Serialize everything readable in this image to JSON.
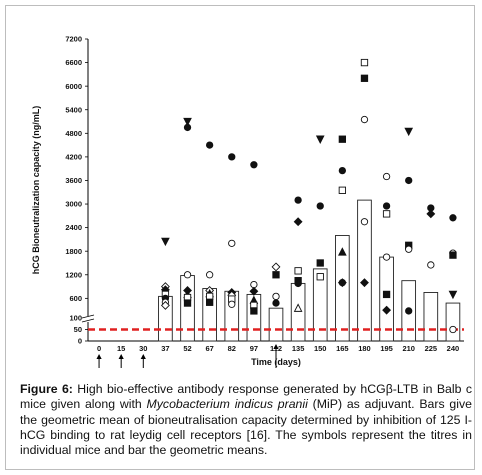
{
  "caption": {
    "label": "Figure 6:",
    "part1": " High bio-effective antibody response generated by hCGβ-LTB in Balb c mice given along with ",
    "italic": "Mycobacterium indicus pranii",
    "part2": " (MiP) as adjuvant. Bars give the geometric mean of bioneutralisation capacity determined by inhibition of 125 I-hCG binding to rat leydig cell receptors [16]. The symbols represent the titres in individual mice and bar the geometric means."
  },
  "chart_data": {
    "type": "bar",
    "xlabel": "Time (days)",
    "ylabel": "hCG Bioneutralization capacity  (ng/mL)",
    "x_ticks": [
      "0",
      "15",
      "30",
      "37",
      "52",
      "67",
      "82",
      "97",
      "112",
      "135",
      "150",
      "165",
      "180",
      "195",
      "210",
      "225",
      "240"
    ],
    "y_ticks_upper": [
      600,
      1200,
      1800,
      2400,
      3000,
      3600,
      4200,
      4800,
      5400,
      6000,
      6600,
      7200
    ],
    "y_ticks_lower": [
      0,
      50,
      100
    ],
    "ylim_upper": [
      100,
      7200
    ],
    "ylim_lower": [
      0,
      100
    ],
    "threshold": {
      "value": 50,
      "style": "dashed",
      "color": "#e02020"
    },
    "arrow_days": [
      "0",
      "15",
      "30",
      "112"
    ],
    "bars": [
      {
        "day": "37",
        "value": 650
      },
      {
        "day": "52",
        "value": 1180
      },
      {
        "day": "67",
        "value": 850
      },
      {
        "day": "82",
        "value": 780
      },
      {
        "day": "97",
        "value": 700
      },
      {
        "day": "112",
        "value": 350
      },
      {
        "day": "135",
        "value": 980
      },
      {
        "day": "150",
        "value": 1350
      },
      {
        "day": "165",
        "value": 2200
      },
      {
        "day": "180",
        "value": 3100
      },
      {
        "day": "195",
        "value": 1650
      },
      {
        "day": "210",
        "value": 1050
      },
      {
        "day": "225",
        "value": 750
      },
      {
        "day": "240",
        "value": 480
      }
    ],
    "marker_types": [
      "filled-circle",
      "open-circle",
      "filled-square",
      "open-square",
      "filled-triangle",
      "open-triangle",
      "filled-diamond",
      "open-diamond",
      "filled-tri-down"
    ],
    "points": [
      {
        "day": "37",
        "value": 2050,
        "marker": "filled-tri-down"
      },
      {
        "day": "37",
        "value": 900,
        "marker": "open-diamond"
      },
      {
        "day": "37",
        "value": 820,
        "marker": "filled-diamond"
      },
      {
        "day": "37",
        "value": 700,
        "marker": "open-square"
      },
      {
        "day": "37",
        "value": 600,
        "marker": "filled-circle"
      },
      {
        "day": "37",
        "value": 500,
        "marker": "open-circle"
      },
      {
        "day": "37",
        "value": 420,
        "marker": "open-diamond"
      },
      {
        "day": "52",
        "value": 5100,
        "marker": "filled-tri-down"
      },
      {
        "day": "52",
        "value": 4950,
        "marker": "filled-circle"
      },
      {
        "day": "52",
        "value": 1200,
        "marker": "open-circle"
      },
      {
        "day": "52",
        "value": 800,
        "marker": "filled-diamond"
      },
      {
        "day": "52",
        "value": 700,
        "marker": "filled-triangle"
      },
      {
        "day": "52",
        "value": 620,
        "marker": "open-square"
      },
      {
        "day": "52",
        "value": 480,
        "marker": "filled-square"
      },
      {
        "day": "67",
        "value": 4500,
        "marker": "filled-circle"
      },
      {
        "day": "67",
        "value": 1200,
        "marker": "open-circle"
      },
      {
        "day": "67",
        "value": 800,
        "marker": "open-diamond"
      },
      {
        "day": "67",
        "value": 720,
        "marker": "filled-triangle"
      },
      {
        "day": "67",
        "value": 650,
        "marker": "open-square"
      },
      {
        "day": "67",
        "value": 500,
        "marker": "filled-square"
      },
      {
        "day": "82",
        "value": 4200,
        "marker": "filled-circle"
      },
      {
        "day": "82",
        "value": 2000,
        "marker": "open-circle"
      },
      {
        "day": "82",
        "value": 750,
        "marker": "filled-diamond"
      },
      {
        "day": "82",
        "value": 680,
        "marker": "open-diamond"
      },
      {
        "day": "82",
        "value": 580,
        "marker": "open-square"
      },
      {
        "day": "82",
        "value": 450,
        "marker": "open-circle"
      },
      {
        "day": "97",
        "value": 4000,
        "marker": "filled-circle"
      },
      {
        "day": "97",
        "value": 950,
        "marker": "open-circle"
      },
      {
        "day": "97",
        "value": 780,
        "marker": "filled-diamond"
      },
      {
        "day": "97",
        "value": 550,
        "marker": "filled-triangle"
      },
      {
        "day": "97",
        "value": 420,
        "marker": "open-square"
      },
      {
        "day": "97",
        "value": 280,
        "marker": "filled-square"
      },
      {
        "day": "112",
        "value": 1400,
        "marker": "open-diamond"
      },
      {
        "day": "112",
        "value": 1200,
        "marker": "filled-square"
      },
      {
        "day": "112",
        "value": 650,
        "marker": "open-circle"
      },
      {
        "day": "112",
        "value": 480,
        "marker": "filled-circle"
      },
      {
        "day": "135",
        "value": 3100,
        "marker": "filled-circle"
      },
      {
        "day": "135",
        "value": 2550,
        "marker": "filled-diamond"
      },
      {
        "day": "135",
        "value": 1300,
        "marker": "open-square"
      },
      {
        "day": "135",
        "value": 1050,
        "marker": "filled-square"
      },
      {
        "day": "135",
        "value": 980,
        "marker": "filled-circle"
      },
      {
        "day": "135",
        "value": 350,
        "marker": "open-triangle"
      },
      {
        "day": "150",
        "value": 4650,
        "marker": "filled-tri-down"
      },
      {
        "day": "150",
        "value": 2950,
        "marker": "filled-circle"
      },
      {
        "day": "150",
        "value": 1500,
        "marker": "filled-square"
      },
      {
        "day": "150",
        "value": 1150,
        "marker": "open-square"
      },
      {
        "day": "165",
        "value": 4650,
        "marker": "filled-square"
      },
      {
        "day": "165",
        "value": 3850,
        "marker": "filled-circle"
      },
      {
        "day": "165",
        "value": 3350,
        "marker": "open-square"
      },
      {
        "day": "165",
        "value": 1780,
        "marker": "filled-triangle"
      },
      {
        "day": "165",
        "value": 1000,
        "marker": "open-circle"
      },
      {
        "day": "165",
        "value": 1000,
        "marker": "filled-diamond"
      },
      {
        "day": "180",
        "value": 6600,
        "marker": "open-square"
      },
      {
        "day": "180",
        "value": 6200,
        "marker": "filled-square"
      },
      {
        "day": "180",
        "value": 5150,
        "marker": "open-circle"
      },
      {
        "day": "180",
        "value": 2550,
        "marker": "open-circle"
      },
      {
        "day": "180",
        "value": 1000,
        "marker": "filled-diamond"
      },
      {
        "day": "195",
        "value": 3700,
        "marker": "open-circle"
      },
      {
        "day": "195",
        "value": 2950,
        "marker": "filled-circle"
      },
      {
        "day": "195",
        "value": 2750,
        "marker": "open-square"
      },
      {
        "day": "195",
        "value": 1650,
        "marker": "open-circle"
      },
      {
        "day": "195",
        "value": 700,
        "marker": "filled-square"
      },
      {
        "day": "195",
        "value": 300,
        "marker": "filled-diamond"
      },
      {
        "day": "210",
        "value": 4850,
        "marker": "filled-tri-down"
      },
      {
        "day": "210",
        "value": 3600,
        "marker": "filled-circle"
      },
      {
        "day": "210",
        "value": 1950,
        "marker": "filled-square"
      },
      {
        "day": "210",
        "value": 1850,
        "marker": "open-circle"
      },
      {
        "day": "210",
        "value": 280,
        "marker": "filled-circle"
      },
      {
        "day": "225",
        "value": 2900,
        "marker": "filled-circle"
      },
      {
        "day": "225",
        "value": 2750,
        "marker": "filled-diamond"
      },
      {
        "day": "225",
        "value": 1450,
        "marker": "open-circle"
      },
      {
        "day": "240",
        "value": 2650,
        "marker": "filled-circle"
      },
      {
        "day": "240",
        "value": 1750,
        "marker": "open-circle"
      },
      {
        "day": "240",
        "value": 1700,
        "marker": "filled-square"
      },
      {
        "day": "240",
        "value": 700,
        "marker": "filled-tri-down"
      },
      {
        "day": "240",
        "value": 50,
        "marker": "open-circle"
      }
    ]
  }
}
